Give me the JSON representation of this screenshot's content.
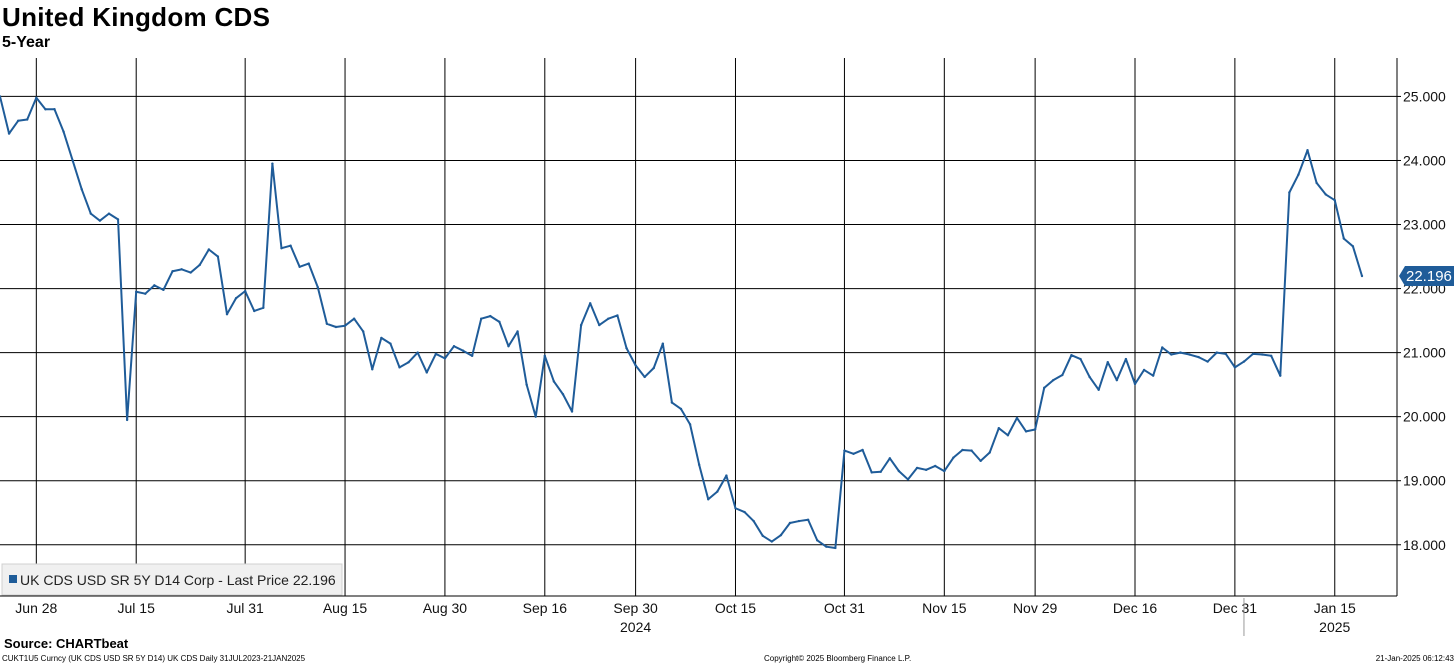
{
  "header": {
    "title": "United Kingdom CDS",
    "subtitle": "5-Year"
  },
  "footer": {
    "source": "Source: CHARTbeat",
    "left": "CUKT1U5 Curncy (UK CDS USD SR 5Y D14) UK CDS  Daily 31JUL2023-21JAN2025",
    "copyright": "Copyright© 2025 Bloomberg Finance L.P.",
    "timestamp": "21-Jan-2025 06:12:43"
  },
  "chart_data": {
    "type": "line",
    "title": "United Kingdom CDS",
    "subtitle": "5-Year",
    "x_range": [
      "2024-06-28",
      "2025-01-21"
    ],
    "ylim": [
      17.2,
      25.6
    ],
    "grid": true,
    "y_axis_side": "right",
    "y_ticks": [
      {
        "value": 18,
        "label": "18.000"
      },
      {
        "value": 19,
        "label": "19.000"
      },
      {
        "value": 20,
        "label": "20.000"
      },
      {
        "value": 21,
        "label": "21.000"
      },
      {
        "value": 22,
        "label": "22.000"
      },
      {
        "value": 23,
        "label": "23.000"
      },
      {
        "value": 24,
        "label": "24.000"
      },
      {
        "value": 25,
        "label": "25.000"
      }
    ],
    "x_ticks": [
      {
        "date": "2024-06-28",
        "label": "Jun 28"
      },
      {
        "date": "2024-07-15",
        "label": "Jul 15"
      },
      {
        "date": "2024-07-31",
        "label": "Jul 31"
      },
      {
        "date": "2024-08-15",
        "label": "Aug 15"
      },
      {
        "date": "2024-08-30",
        "label": "Aug 30"
      },
      {
        "date": "2024-09-16",
        "label": "Sep 16"
      },
      {
        "date": "2024-09-30",
        "label": "Sep 30"
      },
      {
        "date": "2024-10-15",
        "label": "Oct 15"
      },
      {
        "date": "2024-10-31",
        "label": "Oct 31"
      },
      {
        "date": "2024-11-15",
        "label": "Nov 15"
      },
      {
        "date": "2024-11-29",
        "label": "Nov 29"
      },
      {
        "date": "2024-12-16",
        "label": "Dec 16"
      },
      {
        "date": "2024-12-31",
        "label": "Dec 31"
      },
      {
        "date": "2025-01-15",
        "label": "Jan 15"
      }
    ],
    "year_labels": [
      {
        "date": "2024-09-30",
        "label": "2024"
      },
      {
        "date": "2025-01-15",
        "label": "2025"
      }
    ],
    "year_boundary": "2025-01-01",
    "legend": {
      "label": "UK CDS USD SR 5Y D14 Corp - Last Price 22.196",
      "position": "bottom-left"
    },
    "last_value_label": "22.196",
    "color": "#1f5c99",
    "series": [
      {
        "name": "UK CDS USD SR 5Y D14 Corp - Last Price",
        "points": [
          [
            "2024-06-24",
            25.0
          ],
          [
            "2024-06-25",
            24.42
          ],
          [
            "2024-06-26",
            24.62
          ],
          [
            "2024-06-27",
            24.64
          ],
          [
            "2024-06-28",
            24.98
          ],
          [
            "2024-07-01",
            24.8
          ],
          [
            "2024-07-02",
            24.8
          ],
          [
            "2024-07-03",
            24.45
          ],
          [
            "2024-07-04",
            24.0
          ],
          [
            "2024-07-05",
            23.55
          ],
          [
            "2024-07-08",
            23.17
          ],
          [
            "2024-07-09",
            23.06
          ],
          [
            "2024-07-10",
            23.17
          ],
          [
            "2024-07-11",
            23.08
          ],
          [
            "2024-07-12",
            19.95
          ],
          [
            "2024-07-15",
            21.95
          ],
          [
            "2024-07-16",
            21.92
          ],
          [
            "2024-07-17",
            22.05
          ],
          [
            "2024-07-18",
            21.98
          ],
          [
            "2024-07-19",
            22.27
          ],
          [
            "2024-07-22",
            22.3
          ],
          [
            "2024-07-23",
            22.25
          ],
          [
            "2024-07-24",
            22.37
          ],
          [
            "2024-07-25",
            22.61
          ],
          [
            "2024-07-26",
            22.5
          ],
          [
            "2024-07-29",
            21.6
          ],
          [
            "2024-07-30",
            21.85
          ],
          [
            "2024-07-31",
            21.96
          ],
          [
            "2024-08-01",
            21.65
          ],
          [
            "2024-08-02",
            21.7
          ],
          [
            "2024-08-05",
            23.95
          ],
          [
            "2024-08-06",
            22.63
          ],
          [
            "2024-08-07",
            22.67
          ],
          [
            "2024-08-08",
            22.34
          ],
          [
            "2024-08-09",
            22.39
          ],
          [
            "2024-08-12",
            22.02
          ],
          [
            "2024-08-13",
            21.45
          ],
          [
            "2024-08-14",
            21.4
          ],
          [
            "2024-08-15",
            21.42
          ],
          [
            "2024-08-16",
            21.53
          ],
          [
            "2024-08-19",
            21.33
          ],
          [
            "2024-08-20",
            20.74
          ],
          [
            "2024-08-21",
            21.23
          ],
          [
            "2024-08-22",
            21.14
          ],
          [
            "2024-08-23",
            20.77
          ],
          [
            "2024-08-26",
            20.85
          ],
          [
            "2024-08-27",
            21.0
          ],
          [
            "2024-08-28",
            20.69
          ],
          [
            "2024-08-29",
            20.98
          ],
          [
            "2024-08-30",
            20.91
          ],
          [
            "2024-09-02",
            21.1
          ],
          [
            "2024-09-03",
            21.03
          ],
          [
            "2024-09-04",
            20.95
          ],
          [
            "2024-09-05",
            21.53
          ],
          [
            "2024-09-06",
            21.57
          ],
          [
            "2024-09-09",
            21.48
          ],
          [
            "2024-09-10",
            21.1
          ],
          [
            "2024-09-11",
            21.33
          ],
          [
            "2024-09-12",
            20.5
          ],
          [
            "2024-09-13",
            20.0
          ],
          [
            "2024-09-16",
            20.95
          ],
          [
            "2024-09-17",
            20.55
          ],
          [
            "2024-09-18",
            20.35
          ],
          [
            "2024-09-19",
            20.08
          ],
          [
            "2024-09-20",
            21.43
          ],
          [
            "2024-09-23",
            21.77
          ],
          [
            "2024-09-24",
            21.43
          ],
          [
            "2024-09-25",
            21.53
          ],
          [
            "2024-09-26",
            21.58
          ],
          [
            "2024-09-27",
            21.07
          ],
          [
            "2024-09-30",
            20.8
          ],
          [
            "2024-10-01",
            20.62
          ],
          [
            "2024-10-02",
            20.76
          ],
          [
            "2024-10-03",
            21.14
          ],
          [
            "2024-10-04",
            20.22
          ],
          [
            "2024-10-07",
            20.12
          ],
          [
            "2024-10-08",
            19.88
          ],
          [
            "2024-10-09",
            19.25
          ],
          [
            "2024-10-10",
            18.71
          ],
          [
            "2024-10-11",
            18.83
          ],
          [
            "2024-10-14",
            19.08
          ],
          [
            "2024-10-15",
            18.57
          ],
          [
            "2024-10-16",
            18.51
          ],
          [
            "2024-10-17",
            18.37
          ],
          [
            "2024-10-18",
            18.14
          ],
          [
            "2024-10-21",
            18.05
          ],
          [
            "2024-10-22",
            18.15
          ],
          [
            "2024-10-23",
            18.34
          ],
          [
            "2024-10-24",
            18.37
          ],
          [
            "2024-10-25",
            18.39
          ],
          [
            "2024-10-28",
            18.07
          ],
          [
            "2024-10-29",
            17.97
          ],
          [
            "2024-10-30",
            17.95
          ],
          [
            "2024-10-31",
            19.47
          ],
          [
            "2024-11-01",
            19.42
          ],
          [
            "2024-11-04",
            19.48
          ],
          [
            "2024-11-05",
            19.13
          ],
          [
            "2024-11-06",
            19.14
          ],
          [
            "2024-11-07",
            19.35
          ],
          [
            "2024-11-08",
            19.15
          ],
          [
            "2024-11-11",
            19.02
          ],
          [
            "2024-11-12",
            19.2
          ],
          [
            "2024-11-13",
            19.17
          ],
          [
            "2024-11-14",
            19.23
          ],
          [
            "2024-11-15",
            19.15
          ],
          [
            "2024-11-18",
            19.36
          ],
          [
            "2024-11-19",
            19.48
          ],
          [
            "2024-11-20",
            19.47
          ],
          [
            "2024-11-21",
            19.31
          ],
          [
            "2024-11-22",
            19.44
          ],
          [
            "2024-11-25",
            19.82
          ],
          [
            "2024-11-26",
            19.71
          ],
          [
            "2024-11-27",
            19.98
          ],
          [
            "2024-11-28",
            19.77
          ],
          [
            "2024-11-29",
            19.8
          ],
          [
            "2024-12-02",
            20.45
          ],
          [
            "2024-12-03",
            20.57
          ],
          [
            "2024-12-04",
            20.65
          ],
          [
            "2024-12-05",
            20.96
          ],
          [
            "2024-12-06",
            20.9
          ],
          [
            "2024-12-09",
            20.62
          ],
          [
            "2024-12-10",
            20.42
          ],
          [
            "2024-12-11",
            20.85
          ],
          [
            "2024-12-12",
            20.57
          ],
          [
            "2024-12-13",
            20.9
          ],
          [
            "2024-12-16",
            20.51
          ],
          [
            "2024-12-17",
            20.73
          ],
          [
            "2024-12-18",
            20.64
          ],
          [
            "2024-12-19",
            21.08
          ],
          [
            "2024-12-20",
            20.97
          ],
          [
            "2024-12-23",
            21.0
          ],
          [
            "2024-12-24",
            20.97
          ],
          [
            "2024-12-25",
            20.93
          ],
          [
            "2024-12-26",
            20.86
          ],
          [
            "2024-12-27",
            21.0
          ],
          [
            "2024-12-30",
            20.98
          ],
          [
            "2024-12-31",
            20.77
          ],
          [
            "2025-01-01",
            20.86
          ],
          [
            "2025-01-02",
            20.98
          ],
          [
            "2025-01-03",
            20.97
          ],
          [
            "2025-01-06",
            20.95
          ],
          [
            "2025-01-07",
            20.64
          ],
          [
            "2025-01-08",
            23.5
          ],
          [
            "2025-01-09",
            23.78
          ],
          [
            "2025-01-10",
            24.16
          ],
          [
            "2025-01-13",
            23.65
          ],
          [
            "2025-01-14",
            23.47
          ],
          [
            "2025-01-15",
            23.38
          ],
          [
            "2025-01-16",
            22.78
          ],
          [
            "2025-01-17",
            22.66
          ],
          [
            "2025-01-20",
            22.196
          ]
        ]
      }
    ]
  }
}
